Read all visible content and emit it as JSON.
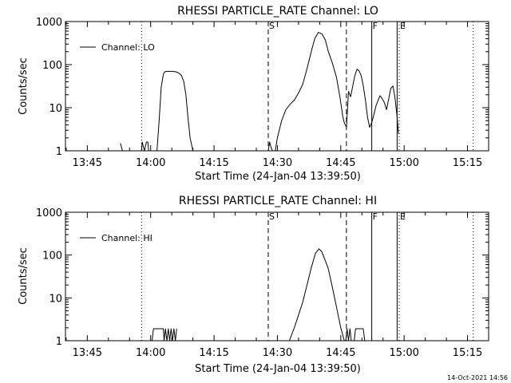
{
  "footer_timestamp": "14-Oct-2021 14:56",
  "chart_data": [
    {
      "type": "line",
      "title": "RHESSI PARTICLE_RATE Channel: LO",
      "xlabel": "Start Time (24-Jan-04 13:39:50)",
      "ylabel": "Counts/sec",
      "y_scale": "log",
      "ylim": [
        1,
        1000
      ],
      "xlim": [
        "13:39:50",
        "15:20:00"
      ],
      "x_tick_labels": [
        "13:45",
        "14:00",
        "14:15",
        "14:30",
        "14:45",
        "15:00",
        "15:15"
      ],
      "x_tick_values": [
        "13:45",
        "14:00",
        "14:15",
        "14:30",
        "14:45",
        "15:00",
        "15:15"
      ],
      "y_tick_labels": [
        "1",
        "10",
        "100",
        "1000"
      ],
      "y_tick_values": [
        1,
        10,
        100,
        1000
      ],
      "legend": {
        "label": "Channel: LO",
        "placement": "top-left"
      },
      "flag_labels": [
        "S",
        "F",
        "E"
      ],
      "vertical_markers": [
        {
          "time": "13:57:50",
          "style": "dotted"
        },
        {
          "time": "14:27:50",
          "style": "dashed",
          "label": "S"
        },
        {
          "time": "14:46:20",
          "style": "dashed"
        },
        {
          "time": "14:52:20",
          "style": "solid",
          "label": "F"
        },
        {
          "time": "14:58:20",
          "style": "solid"
        },
        {
          "time": "14:58:50",
          "style": "dotted",
          "label": "E"
        },
        {
          "time": "15:16:20",
          "style": "dotted"
        }
      ],
      "series": [
        {
          "name": "Channel: LO",
          "segments": [
            {
              "x": [
                "13:52:50",
                "13:53:20"
              ],
              "y": [
                1.5,
                1
              ]
            },
            {
              "x": [
                "13:57:50",
                "13:58:00",
                "13:58:30",
                "13:59:00",
                "13:59:20",
                "13:59:30"
              ],
              "y": [
                1,
                1.6,
                1,
                1.6,
                1.6,
                1
              ]
            },
            {
              "x": [
                "14:01:30",
                "14:02:00",
                "14:02:30",
                "14:03:00",
                "14:03:20",
                "14:04:00",
                "14:05:00",
                "14:06:00",
                "14:06:50",
                "14:07:20",
                "14:07:50",
                "14:08:20",
                "14:08:50",
                "14:09:20",
                "14:10:00"
              ],
              "y": [
                1,
                5,
                30,
                60,
                68,
                70,
                70,
                68,
                62,
                55,
                40,
                20,
                6,
                2,
                1
              ]
            },
            {
              "x": [
                "14:27:50",
                "14:28:10",
                "14:28:30",
                "14:28:50"
              ],
              "y": [
                1,
                1.6,
                1.2,
                1
              ]
            },
            {
              "x": [
                "14:29:30",
                "14:30:00",
                "14:31:00",
                "14:32:00",
                "14:33:00",
                "14:34:00",
                "14:35:00",
                "14:36:00",
                "14:37:00",
                "14:38:00",
                "14:38:50",
                "14:39:40",
                "14:40:30",
                "14:41:20",
                "14:42:00",
                "14:43:00",
                "14:44:00",
                "14:44:50",
                "14:45:10",
                "14:45:30",
                "14:45:50",
                "14:46:20",
                "14:46:50",
                "14:47:20",
                "14:47:50",
                "14:48:20",
                "14:48:50",
                "14:49:20",
                "14:49:50",
                "14:50:20",
                "14:50:50",
                "14:51:20",
                "14:51:50",
                "14:52:20",
                "14:52:50",
                "14:53:20",
                "14:53:50",
                "14:54:20",
                "14:54:50",
                "14:55:20",
                "14:55:50",
                "14:56:20",
                "14:56:50",
                "14:57:20",
                "14:57:50",
                "14:58:20",
                "14:58:40"
              ],
              "y": [
                1,
                2,
                5,
                9,
                12,
                15,
                22,
                35,
                80,
                200,
                400,
                560,
                520,
                380,
                210,
                110,
                50,
                17,
                10,
                6,
                4.5,
                3.5,
                24,
                18,
                32,
                55,
                78,
                72,
                55,
                32,
                15,
                6,
                3.5,
                4.5,
                7,
                11,
                15,
                19,
                16,
                13,
                9,
                16,
                28,
                32,
                17,
                6,
                2.5
              ]
            }
          ]
        }
      ]
    },
    {
      "type": "line",
      "title": "RHESSI PARTICLE_RATE Channel: HI",
      "xlabel": "Start Time (24-Jan-04 13:39:50)",
      "ylabel": "Counts/sec",
      "y_scale": "log",
      "ylim": [
        1,
        1000
      ],
      "xlim": [
        "13:39:50",
        "15:20:00"
      ],
      "x_tick_labels": [
        "13:45",
        "14:00",
        "14:15",
        "14:30",
        "14:45",
        "15:00",
        "15:15"
      ],
      "x_tick_values": [
        "13:45",
        "14:00",
        "14:15",
        "14:30",
        "14:45",
        "15:00",
        "15:15"
      ],
      "y_tick_labels": [
        "1",
        "10",
        "100",
        "1000"
      ],
      "y_tick_values": [
        1,
        10,
        100,
        1000
      ],
      "legend": {
        "label": "Channel: HI",
        "placement": "top-left"
      },
      "flag_labels": [
        "S",
        "F",
        "E"
      ],
      "vertical_markers": [
        {
          "time": "13:57:50",
          "style": "dotted"
        },
        {
          "time": "14:27:50",
          "style": "dashed",
          "label": "S"
        },
        {
          "time": "14:46:20",
          "style": "dashed"
        },
        {
          "time": "14:52:20",
          "style": "solid",
          "label": "F"
        },
        {
          "time": "14:58:20",
          "style": "solid"
        },
        {
          "time": "14:58:50",
          "style": "dotted",
          "label": "E"
        },
        {
          "time": "15:16:20",
          "style": "dotted"
        }
      ],
      "series": [
        {
          "name": "Channel: HI",
          "segments": [
            {
              "x": [
                "14:00:20",
                "14:00:40",
                "14:01:00",
                "14:03:00",
                "14:03:10",
                "14:03:30",
                "14:03:50",
                "14:04:10",
                "14:04:30",
                "14:04:50",
                "14:05:10",
                "14:05:30",
                "14:05:50",
                "14:06:10"
              ],
              "y": [
                1,
                1.9,
                1.9,
                1.9,
                1,
                1.9,
                1,
                1.9,
                1,
                1.9,
                1,
                1.9,
                1,
                1.9
              ]
            },
            {
              "x": [
                "14:32:50",
                "14:34:00",
                "14:35:00",
                "14:36:00",
                "14:37:00",
                "14:38:00",
                "14:39:00",
                "14:39:50",
                "14:40:30",
                "14:41:00",
                "14:42:00",
                "14:43:00",
                "14:44:00",
                "14:45:00",
                "14:45:50"
              ],
              "y": [
                1,
                2,
                4,
                8,
                20,
                50,
                110,
                140,
                120,
                90,
                50,
                18,
                6,
                2,
                1
              ]
            },
            {
              "x": [
                "14:46:10",
                "14:46:30",
                "14:46:50",
                "14:47:10",
                "14:47:30",
                "14:48:10",
                "14:48:30",
                "14:50:20",
                "14:50:40"
              ],
              "y": [
                1,
                1.9,
                1,
                1.9,
                1,
                1,
                1.9,
                1.9,
                1
              ]
            }
          ]
        }
      ]
    }
  ]
}
